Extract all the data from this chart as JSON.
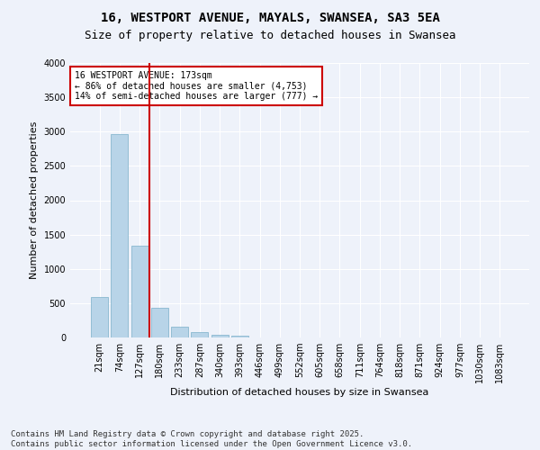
{
  "title1": "16, WESTPORT AVENUE, MAYALS, SWANSEA, SA3 5EA",
  "title2": "Size of property relative to detached houses in Swansea",
  "xlabel": "Distribution of detached houses by size in Swansea",
  "ylabel": "Number of detached properties",
  "categories": [
    "21sqm",
    "74sqm",
    "127sqm",
    "180sqm",
    "233sqm",
    "287sqm",
    "340sqm",
    "393sqm",
    "446sqm",
    "499sqm",
    "552sqm",
    "605sqm",
    "658sqm",
    "711sqm",
    "764sqm",
    "818sqm",
    "871sqm",
    "924sqm",
    "977sqm",
    "1030sqm",
    "1083sqm"
  ],
  "values": [
    590,
    2970,
    1340,
    430,
    160,
    75,
    45,
    30,
    0,
    0,
    0,
    0,
    0,
    0,
    0,
    0,
    0,
    0,
    0,
    0,
    0
  ],
  "bar_color": "#b8d4e8",
  "bar_edge_color": "#7aafc8",
  "background_color": "#eef2fa",
  "grid_color": "#ffffff",
  "vline_color": "#cc0000",
  "annotation_text": "16 WESTPORT AVENUE: 173sqm\n← 86% of detached houses are smaller (4,753)\n14% of semi-detached houses are larger (777) →",
  "annotation_box_color": "#cc0000",
  "ylim": [
    0,
    4000
  ],
  "yticks": [
    0,
    500,
    1000,
    1500,
    2000,
    2500,
    3000,
    3500,
    4000
  ],
  "footer": "Contains HM Land Registry data © Crown copyright and database right 2025.\nContains public sector information licensed under the Open Government Licence v3.0.",
  "title_fontsize": 10,
  "subtitle_fontsize": 9,
  "axis_label_fontsize": 8,
  "tick_fontsize": 7,
  "footer_fontsize": 6.5
}
